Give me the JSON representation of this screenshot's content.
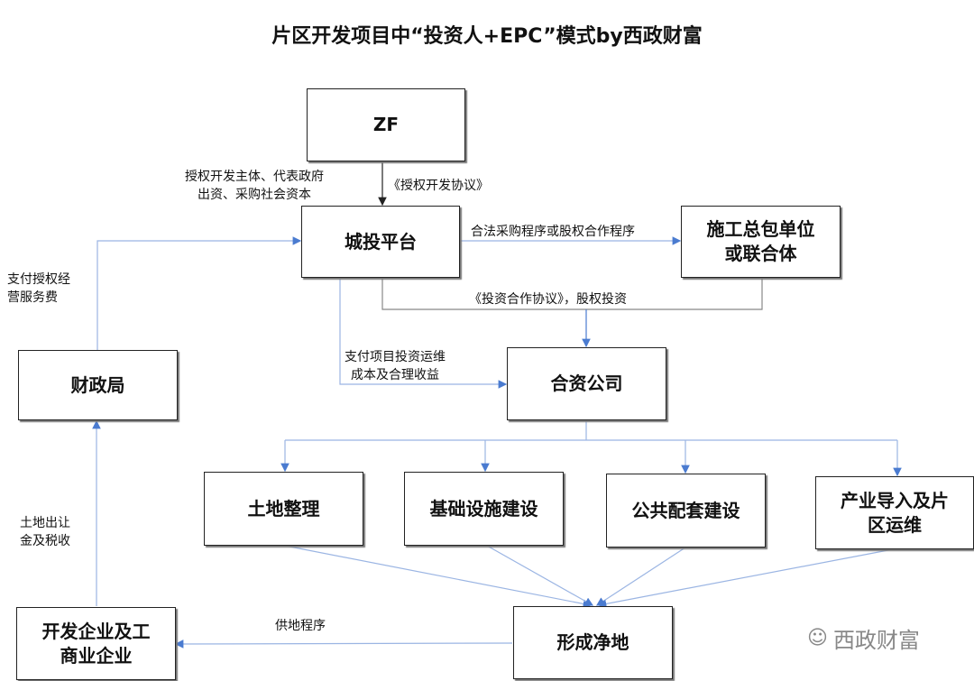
{
  "title": "片区开发项目中“投资人+EPC”模式by西政财富",
  "nodes": {
    "zf": "ZF",
    "platform": "城投平台",
    "contractor": "施工总包单位\n或联合体",
    "jv": "合资公司",
    "finance": "财政局",
    "land": "土地整理",
    "infra": "基础设施建设",
    "public": "公共配套建设",
    "industry": "产业导入及片\n区运维",
    "clean_land": "形成净地",
    "enterprise": "开发企业及工\n商业企业"
  },
  "edges": {
    "zf_platform_left": "授权开发主体、代表政府\n出资、采购社会资本",
    "zf_platform_right": "《授权开发协议》",
    "platform_contractor": "合法采购程序或股权合作程序",
    "investment": "《投资合作协议》，股权投资",
    "finance_platform": "支付授权经\n营服务费",
    "platform_jv": "支付项目投资运维\n成本及合理收益",
    "enterprise_finance": "土地出让\n金及税收",
    "land_supply": "供地程序"
  },
  "watermark": "西政财富",
  "colors": {
    "arrow_blue": "#4a7bd0",
    "line_gray": "#888888",
    "box_border": "#222222"
  }
}
